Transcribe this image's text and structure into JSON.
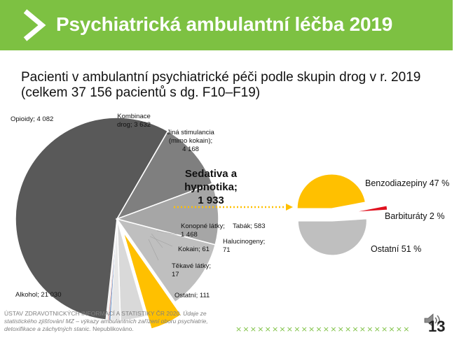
{
  "header": {
    "title": "Psychiatrická ambulantní léčba 2019",
    "background_color": "#7dc142",
    "chevron_icon": "chevron-right-icon"
  },
  "subtitle": {
    "line1": "Pacienti v ambulantní psychiatrické péči podle skupin drog v r. 2019",
    "line2": "(celkem 37 156 pacientů s dg. F10–F19)"
  },
  "chart_data": [
    {
      "type": "pie",
      "title": "",
      "exploded_category": "Sedativa a hypnotika",
      "slices": [
        {
          "name": "Alkohol",
          "value": 21030,
          "label_lines": [
            "Alkohol; 21 030"
          ],
          "color": "#595959"
        },
        {
          "name": "Opioidy",
          "value": 4082,
          "label_lines": [
            "Opioidy; 4 082"
          ],
          "color": "#7f7f7f"
        },
        {
          "name": "Kombinace drog",
          "value": 3632,
          "label_lines": [
            "Kombinace",
            "drog; 3 632"
          ],
          "color": "#a6a6a6"
        },
        {
          "name": "Jiná stimulancia (mimo kokain)",
          "value": 4168,
          "label_lines": [
            "Jiná stimulancia",
            "(mimo kokain);",
            "4 168"
          ],
          "color": "#bfbfbf"
        },
        {
          "name": "Sedativa a hypnotika",
          "value": 1933,
          "label_lines": [
            "Sedativa a",
            "hypnotika;",
            "1 933"
          ],
          "color": "#ffc000"
        },
        {
          "name": "Konopné látky",
          "value": 1468,
          "label_lines": [
            "Konopné látky;",
            "1 468"
          ],
          "color": "#d9d9d9"
        },
        {
          "name": "Tabák",
          "value": 583,
          "label_lines": [
            "Tabák; 583"
          ],
          "color": "#e8e8e8"
        },
        {
          "name": "Halucinogeny",
          "value": 71,
          "label_lines": [
            "Halucinogeny;",
            "71"
          ],
          "color": "#4f81bd"
        },
        {
          "name": "Kokain",
          "value": 61,
          "label_lines": [
            "Kokain; 61"
          ],
          "color": "#d99694"
        },
        {
          "name": "Těkavé látky",
          "value": 17,
          "label_lines": [
            "Těkavé látky;",
            "17"
          ],
          "color": "#c0504d"
        },
        {
          "name": "Ostatní",
          "value": 111,
          "label_lines": [
            "Ostatní; 111"
          ],
          "color": "#f2f2f2"
        }
      ]
    },
    {
      "type": "pie",
      "title": "",
      "slices": [
        {
          "name": "Benzodiazepiny",
          "value": 47,
          "label": "Benzodiazepiny 47 %",
          "color": "#ffc000"
        },
        {
          "name": "Barbituráty",
          "value": 2,
          "label": "Barbituráty 2 %",
          "color": "#e0101e"
        },
        {
          "name": "Ostatní",
          "value": 51,
          "label": "Ostatní 51 %",
          "color": "#bfbfbf"
        }
      ]
    }
  ],
  "decor": {
    "separator_mark": "×",
    "separator_count": 24,
    "separator_color": "#7dc142",
    "arrow_color": "#ffc000",
    "speaker_icon": "speaker-icon"
  },
  "footer": {
    "line1": "ÚSTAV ZDRAVOTNICKÝCH INFORMACÍ A STATISTIKY ČR 2020.",
    "line1_italic": "Údaje",
    "line2_italic": "ze statistického zjišťování MZ – výkazy ambulantních zařízení oboru psychiatrie, detoxifikace a záchytných stanic.",
    "line2_tail": "Nepublikováno."
  },
  "page_number": "13"
}
